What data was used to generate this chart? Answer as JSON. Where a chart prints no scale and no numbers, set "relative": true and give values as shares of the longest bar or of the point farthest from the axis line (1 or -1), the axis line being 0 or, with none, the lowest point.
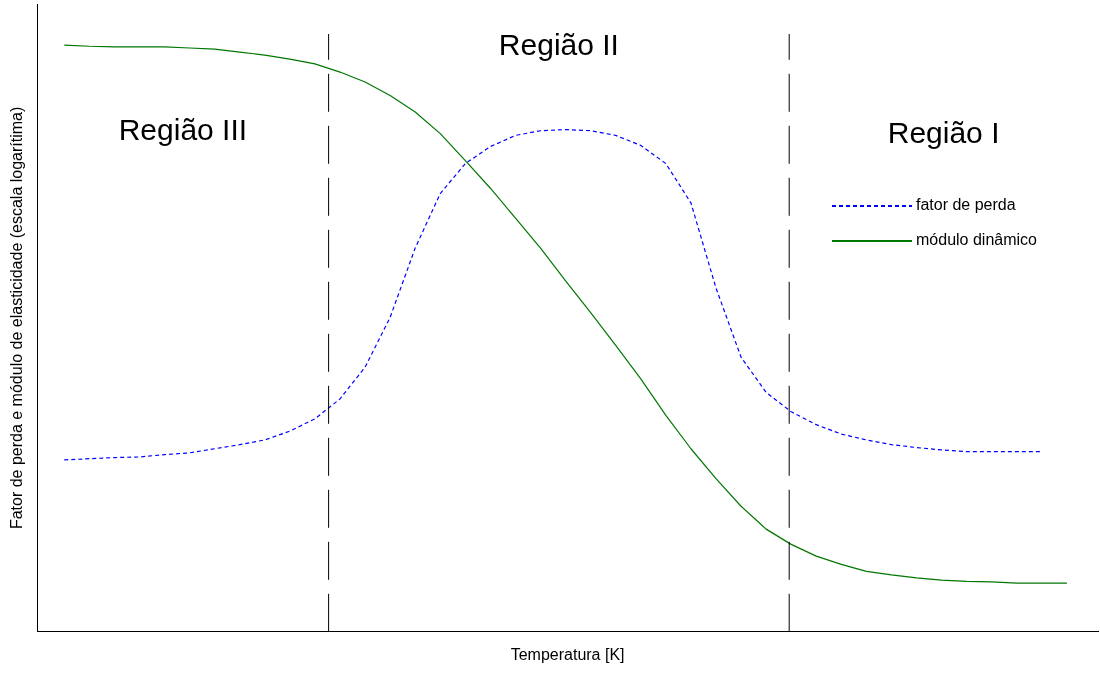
{
  "chart_data": {
    "type": "line",
    "relative": true,
    "xlabel": "Temperatura [K]",
    "ylabel": "Fator de perda e módulo de elasticidade (escala logarítima)",
    "categories": [
      null,
      null,
      null,
      null,
      null,
      null,
      null,
      null,
      null,
      null,
      null,
      null,
      null,
      null,
      null,
      null,
      null,
      null,
      null,
      null,
      null,
      null,
      null,
      null,
      null,
      null,
      null,
      null,
      null,
      null,
      null,
      null,
      null,
      null,
      null,
      null,
      null,
      null,
      null,
      null,
      null
    ],
    "series": [
      {
        "name": "fator de perda",
        "color": "#0000ff",
        "line_style": "dashed",
        "values": [
          0.293,
          0.295,
          0.297,
          0.298,
          0.302,
          0.305,
          0.312,
          0.319,
          0.327,
          0.342,
          0.363,
          0.397,
          0.451,
          0.536,
          0.654,
          0.747,
          0.798,
          0.827,
          0.846,
          0.854,
          0.856,
          0.854,
          0.846,
          0.829,
          0.798,
          0.731,
          0.586,
          0.468,
          0.408,
          0.375,
          0.353,
          0.337,
          0.327,
          0.319,
          0.314,
          0.31,
          0.307,
          0.307,
          0.307,
          0.307,
          null
        ]
      },
      {
        "name": "módulo dinâmico",
        "color": "#007700",
        "line_style": "solid",
        "values": [
          1,
          0.998,
          0.997,
          0.997,
          0.997,
          0.995,
          0.993,
          0.988,
          0.983,
          0.976,
          0.968,
          0.954,
          0.937,
          0.914,
          0.886,
          0.849,
          0.803,
          0.756,
          0.705,
          0.654,
          0.598,
          0.544,
          0.488,
          0.431,
          0.369,
          0.312,
          0.261,
          0.214,
          0.175,
          0.149,
          0.129,
          0.115,
          0.103,
          0.097,
          0.092,
          0.088,
          0.086,
          0.085,
          0.083,
          0.083,
          0.083
        ]
      }
    ],
    "annotations": [
      "Região III",
      "Região II",
      "Região I"
    ],
    "legend": "right",
    "marker": "none"
  }
}
